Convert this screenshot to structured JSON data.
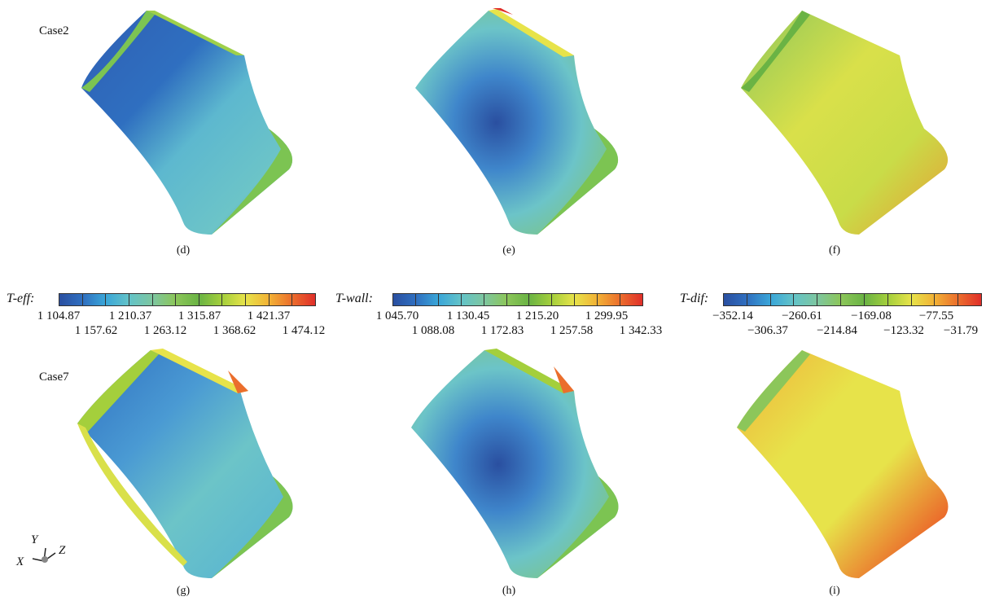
{
  "cases": [
    "Case2",
    "Case7"
  ],
  "panel_labels": [
    "(d)",
    "(e)",
    "(f)",
    "(g)",
    "(h)",
    "(i)"
  ],
  "legends": [
    {
      "title": "T-eff:",
      "row1": [
        "1 104.87",
        "1 210.37",
        "1 315.87",
        "1 421.37"
      ],
      "row2": [
        "1 157.62",
        "1 263.12",
        "1 368.62",
        "1 474.12"
      ],
      "colors": [
        "#2a4fa0",
        "#2f6fc0",
        "#3aa6d8",
        "#63c3c8",
        "#7dc6a0",
        "#8cc65a",
        "#6ab344",
        "#a4cf3c",
        "#e7e34a",
        "#f2b236",
        "#eb6e2c",
        "#e02f2a"
      ]
    },
    {
      "title": "T-wall:",
      "row1": [
        "1 045.70",
        "1 130.45",
        "1 215.20",
        "1 299.95"
      ],
      "row2": [
        "1 088.08",
        "1 172.83",
        "1 257.58",
        "1 342.33"
      ],
      "colors": [
        "#2a4fa0",
        "#2f6fc0",
        "#3aa6d8",
        "#63c3c8",
        "#7dc6a0",
        "#8cc65a",
        "#6ab344",
        "#a4cf3c",
        "#e7e34a",
        "#f2b236",
        "#eb6e2c",
        "#e02f2a"
      ]
    },
    {
      "title": "T-dif:",
      "row1": [
        "−352.14",
        "−260.61",
        "−169.08",
        "−77.55"
      ],
      "row2": [
        "−306.37",
        "−214.84",
        "−123.32",
        "−31.79"
      ],
      "colors": [
        "#2a4fa0",
        "#2f6fc0",
        "#3aa6d8",
        "#63c3c8",
        "#7dc6a0",
        "#8cc65a",
        "#6ab344",
        "#a4cf3c",
        "#e7e34a",
        "#f2b236",
        "#eb6e2c",
        "#e02f2a"
      ]
    }
  ],
  "axes": {
    "x": "X",
    "y": "Y",
    "z": "Z"
  }
}
